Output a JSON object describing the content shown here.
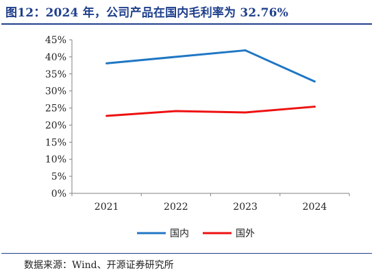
{
  "header": {
    "title": "图12：2024 年，公司产品在国内毛利率为 32.76%"
  },
  "footer": {
    "source": "数据来源：Wind、开源证券研究所"
  },
  "chart_data": {
    "type": "line",
    "title": "",
    "xlabel": "",
    "ylabel": "",
    "categories": [
      "2021",
      "2022",
      "2023",
      "2024"
    ],
    "ylim": [
      0,
      45
    ],
    "yticks": [
      "0%",
      "5%",
      "10%",
      "15%",
      "20%",
      "25%",
      "30%",
      "35%",
      "40%",
      "45%"
    ],
    "grid": false,
    "legend_position": "bottom",
    "series": [
      {
        "name": "国内",
        "color": "#1f77c4",
        "values": [
          38.1,
          40.0,
          41.9,
          32.76
        ]
      },
      {
        "name": "国外",
        "color": "#ee1111",
        "values": [
          22.7,
          24.1,
          23.7,
          25.4
        ]
      }
    ]
  }
}
